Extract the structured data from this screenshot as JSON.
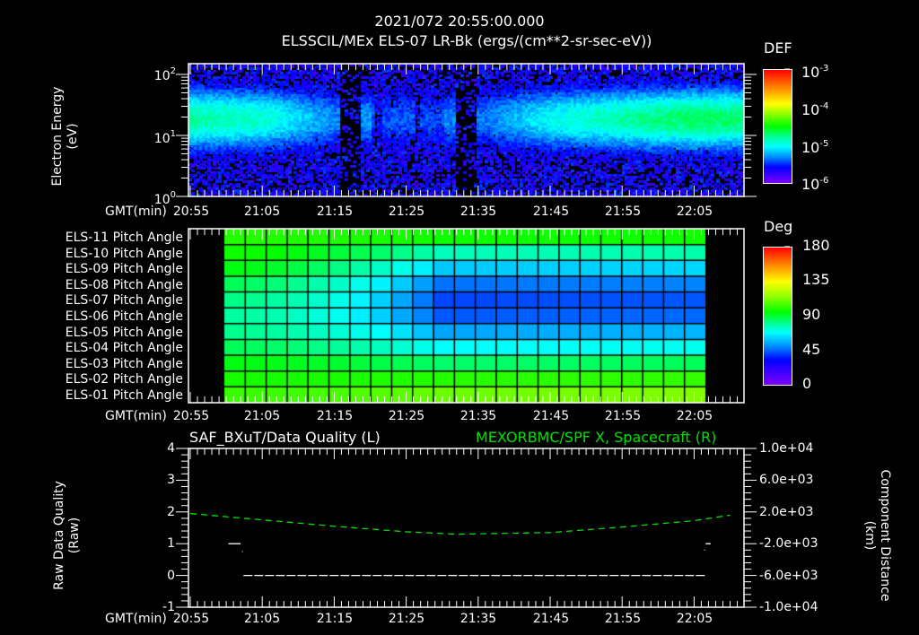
{
  "header": {
    "timestamp": "2021/072 20:55:00.000",
    "title": "ELSSCIL/MEx ELS-07 LR-Bk  (ergs/(cm**2-sr-sec-eV))"
  },
  "time_axis": {
    "label": "GMT(min)",
    "ticks": [
      "20:55",
      "21:05",
      "21:15",
      "21:25",
      "21:35",
      "21:45",
      "21:55",
      "22:05"
    ]
  },
  "colors": {
    "background": "#000000",
    "axis": "#ffffff",
    "right_series": "#00e000"
  },
  "chart_data": [
    {
      "type": "heatmap",
      "title": "ELSSCIL/MEx ELS-07 LR-Bk  (ergs/(cm**2-sr-sec-eV))",
      "xlabel": "GMT(min)",
      "ylabel": "Electron Energy",
      "ylabel_units": "(eV)",
      "yscale": "log",
      "ylim": [
        1,
        150
      ],
      "y_ticks": [
        "10^0",
        "10^1",
        "10^2"
      ],
      "x_ticks": [
        "20:55",
        "21:05",
        "21:15",
        "21:25",
        "21:35",
        "21:45",
        "21:55",
        "22:05"
      ],
      "colorbar": {
        "label": "DEF",
        "scale": "log",
        "range": [
          1e-06,
          0.001
        ],
        "ticks": [
          "10^-3",
          "10^-4",
          "10^-5",
          "10^-6"
        ]
      },
      "description": "Energy-time spectrogram; band of enhanced flux near 10-30 eV; dropouts near 21:14-21:17, 21:19-21:20 and 21:31-21:34; strongest flux after 21:50 near 20 eV",
      "band_peak_ev": [
        {
          "time": "20:55",
          "peak_ev": 18,
          "level": "1.5e-4"
        },
        {
          "time": "21:05",
          "peak_ev": 18,
          "level": "8e-5"
        },
        {
          "time": "21:15",
          "peak_ev": 17,
          "level": "2e-5"
        },
        {
          "time": "21:25",
          "peak_ev": 17,
          "level": "3e-5"
        },
        {
          "time": "21:35",
          "peak_ev": 16,
          "level": "1e-5"
        },
        {
          "time": "21:45",
          "peak_ev": 18,
          "level": "6e-5"
        },
        {
          "time": "21:55",
          "peak_ev": 20,
          "level": "1.5e-4"
        },
        {
          "time": "22:05",
          "peak_ev": 20,
          "level": "2.5e-4"
        }
      ]
    },
    {
      "type": "heatmap",
      "title": "ELS Pitch Angle",
      "xlabel": "GMT(min)",
      "y_categories": [
        "ELS-11 Pitch Angle",
        "ELS-10 Pitch Angle",
        "ELS-09 Pitch Angle",
        "ELS-08 Pitch Angle",
        "ELS-07 Pitch Angle",
        "ELS-06 Pitch Angle",
        "ELS-05 Pitch Angle",
        "ELS-04 Pitch Angle",
        "ELS-03 Pitch Angle",
        "ELS-02 Pitch Angle",
        "ELS-01 Pitch Angle"
      ],
      "x_ticks": [
        "20:55",
        "21:05",
        "21:15",
        "21:25",
        "21:35",
        "21:45",
        "21:55",
        "22:05"
      ],
      "data_time_range": [
        "21:00",
        "22:06"
      ],
      "colorbar": {
        "label": "Deg",
        "range": [
          0,
          180
        ],
        "ticks": [
          "180",
          "135",
          "90",
          "45",
          "0"
        ]
      },
      "rows_deg_start": [
        95,
        92,
        88,
        80,
        75,
        72,
        74,
        80,
        88,
        93,
        98
      ],
      "rows_deg_mid": [
        92,
        68,
        50,
        38,
        33,
        35,
        45,
        58,
        78,
        95,
        105
      ],
      "rows_deg_end": [
        92,
        70,
        52,
        40,
        35,
        37,
        47,
        60,
        80,
        97,
        108
      ]
    },
    {
      "type": "line",
      "title_left": "SAF_BXuT/Data Quality (L)",
      "title_right": "MEXORBMC/SPF X, Spacecraft (R)",
      "xlabel": "GMT(min)",
      "ylabel_left": "Raw Data Quality",
      "ylabel_left_units": "(Raw)",
      "ylabel_right": "Component Distance",
      "ylabel_right_units": "(km)",
      "ylim_left": [
        -1,
        4
      ],
      "yticks_left": [
        "-1",
        "0",
        "1",
        "2",
        "3",
        "4"
      ],
      "ylim_right": [
        -10000,
        10000
      ],
      "yticks_right": [
        "1.0e+04",
        "6.0e+03",
        "2.0e+03",
        "-2.0e+03",
        "-6.0e+03",
        "-1.0e+04"
      ],
      "x_ticks": [
        "20:55",
        "21:05",
        "21:15",
        "21:25",
        "21:35",
        "21:45",
        "21:55",
        "22:05"
      ],
      "series": [
        {
          "name": "Data Quality",
          "axis": "left",
          "color": "#ffffff",
          "points": [
            {
              "t": "21:00",
              "v": 1
            },
            {
              "t": "21:01",
              "v": 1
            },
            {
              "t": "21:02",
              "v": 0
            },
            {
              "t": "22:05",
              "v": 0
            },
            {
              "t": "22:06",
              "v": 1
            }
          ]
        },
        {
          "name": "SPF X",
          "axis": "right",
          "color": "#00e000",
          "style": "dashed",
          "points": [
            {
              "t": "20:55",
              "v": 1800
            },
            {
              "t": "21:05",
              "v": 1000
            },
            {
              "t": "21:15",
              "v": 200
            },
            {
              "t": "21:25",
              "v": -500
            },
            {
              "t": "21:32",
              "v": -800
            },
            {
              "t": "21:45",
              "v": -600
            },
            {
              "t": "21:55",
              "v": 100
            },
            {
              "t": "22:05",
              "v": 900
            },
            {
              "t": "22:10",
              "v": 1600
            }
          ]
        }
      ]
    }
  ]
}
